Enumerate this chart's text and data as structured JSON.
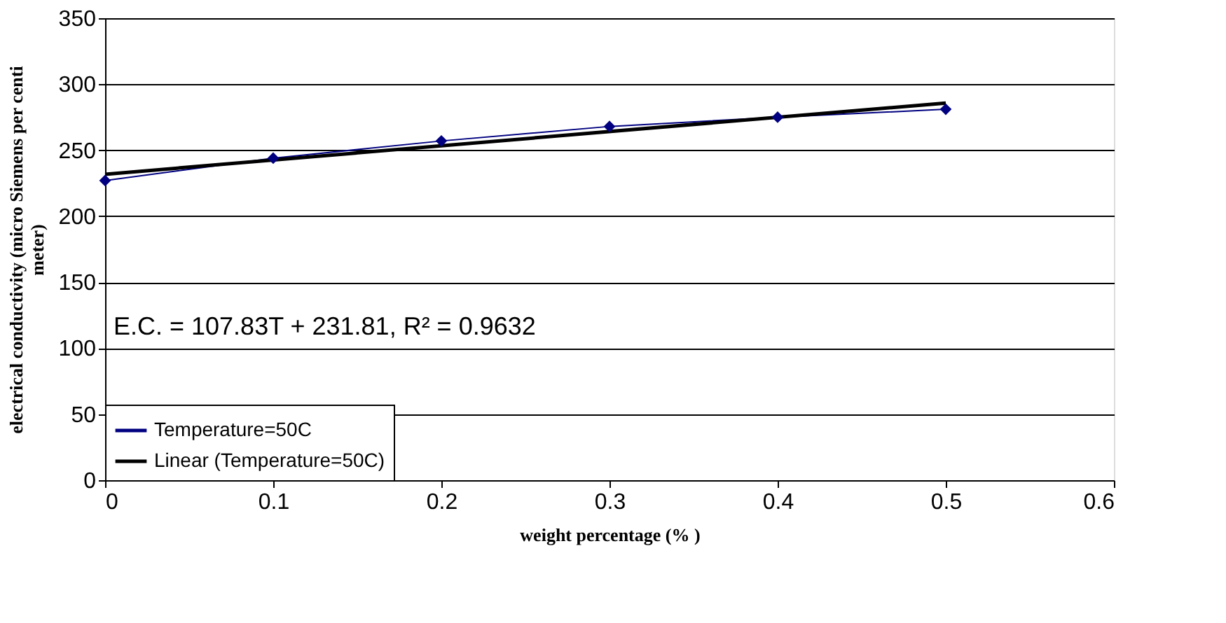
{
  "chart_data": {
    "type": "line",
    "xlabel": "weight percentage (% )",
    "ylabel": "electrical conductivity (micro Siemens per centi\nmeter)",
    "xlim": [
      0,
      0.6
    ],
    "xticks": [
      0,
      0.1,
      0.2,
      0.3,
      0.4,
      0.5,
      0.6
    ],
    "ylim": [
      0,
      350
    ],
    "yticks": [
      0,
      50,
      100,
      150,
      200,
      250,
      300,
      350
    ],
    "grid": "y",
    "legend": "bottom left",
    "line_style": "solid",
    "annotations": [
      "E.C. = 107.83T + 231.81, R² = 0.9632"
    ],
    "series": [
      {
        "name": "Temperature=50C",
        "color": "#000080",
        "marker": "diamond",
        "x": [
          0,
          0.1,
          0.2,
          0.3,
          0.4,
          0.5
        ],
        "values": [
          227,
          244,
          257,
          268,
          275,
          281
        ]
      },
      {
        "name": "Linear (Temperature=50C)",
        "color": "#000000",
        "marker": "none",
        "x": [
          0,
          0.5
        ],
        "values": [
          231.8,
          285.7
        ]
      }
    ]
  }
}
